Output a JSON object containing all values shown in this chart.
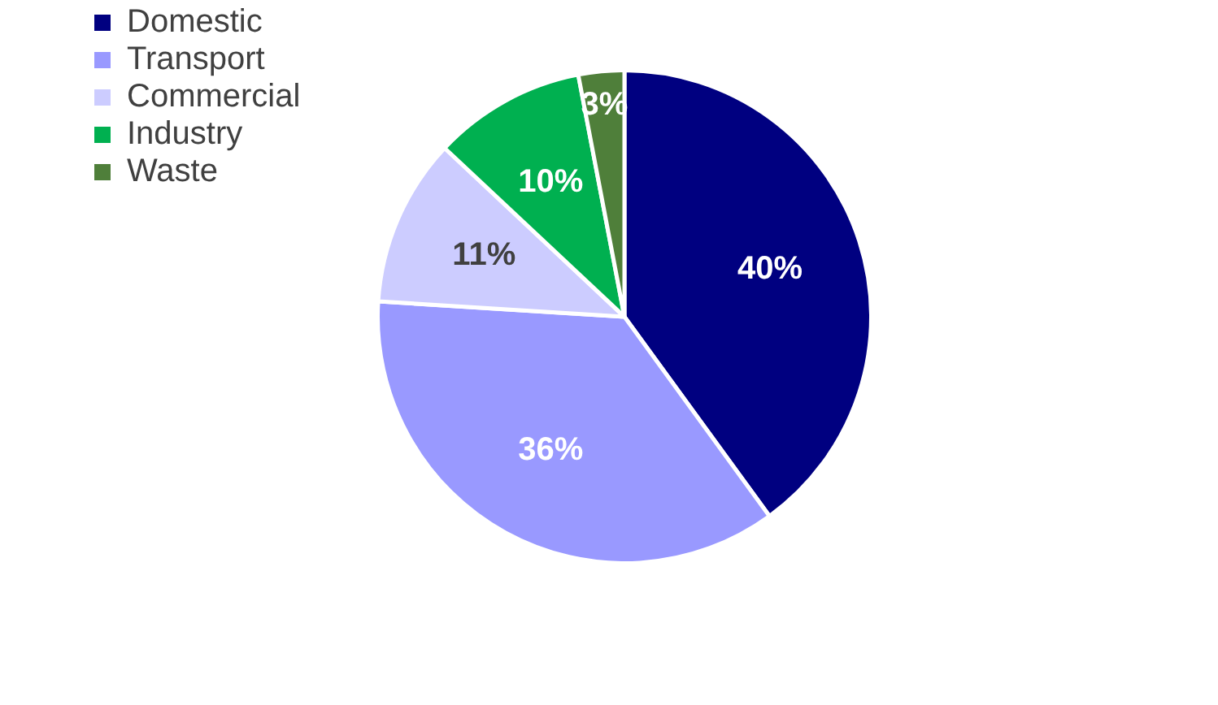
{
  "chart_data": {
    "type": "pie",
    "categories": [
      "Domestic",
      "Transport",
      "Commercial",
      "Industry",
      "Waste"
    ],
    "values": [
      40,
      36,
      11,
      10,
      3
    ],
    "colors": [
      "#000080",
      "#9999ff",
      "#ccccff",
      "#00b050",
      "#4f7f3a"
    ],
    "value_labels": [
      "40%",
      "36%",
      "11%",
      "10%",
      "3%"
    ],
    "legend": "top left"
  }
}
